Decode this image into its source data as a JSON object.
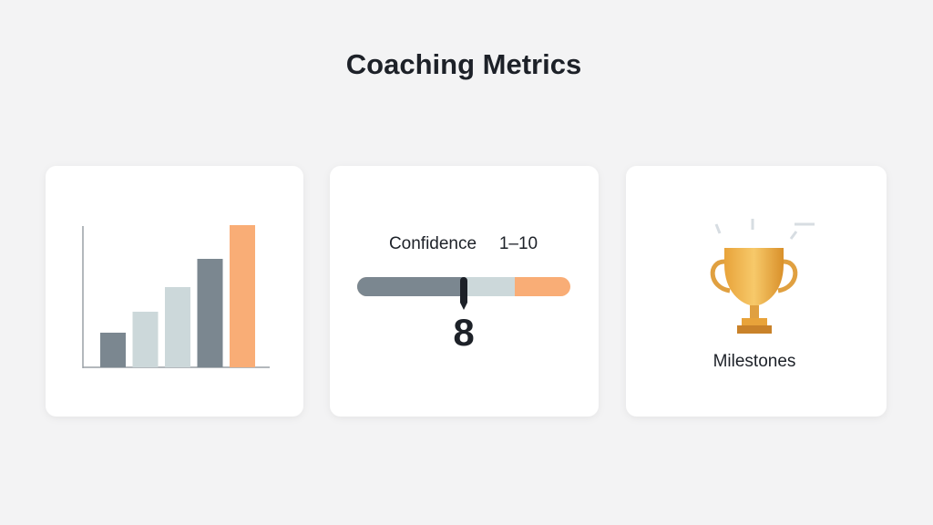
{
  "header": {
    "title": "Coaching Metrics"
  },
  "cards": [
    {
      "bars": {
        "values": [
          38,
          61,
          88,
          119,
          156
        ],
        "colors": [
          "#7b8790",
          "#ccd8da",
          "#ccd8da",
          "#7b8790",
          "#f9ad76"
        ]
      }
    },
    {
      "label": "Confidence",
      "range": "1–10",
      "value": 8
    },
    {
      "label": "Milestones"
    }
  ]
}
